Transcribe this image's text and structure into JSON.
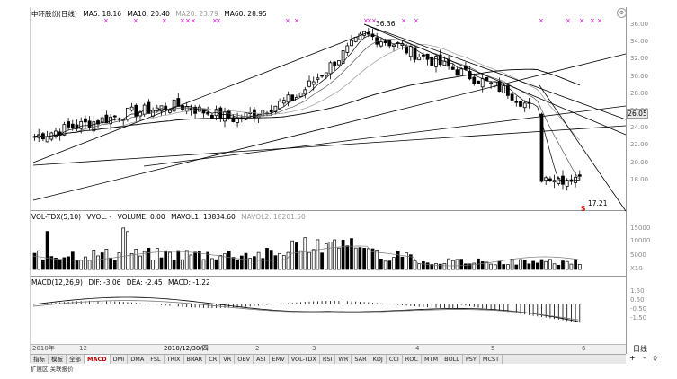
{
  "header": {
    "stock": "中环股份(日线)",
    "ma5": "MA5: 18.16",
    "ma10": "MA10: 20.40",
    "ma20": "MA20: 23.79",
    "ma60": "MA60: 28.95"
  },
  "price_axis": [
    "36.00",
    "34.00",
    "32.00",
    "30.00",
    "28.00",
    "26.00",
    "24.00",
    "22.00",
    "20.00",
    "18.00"
  ],
  "current_price": "26.05",
  "annotations": {
    "high": "36.36",
    "low": "17.21",
    "signal": "S"
  },
  "volume_header": {
    "name": "VOL-TDX(5,10)",
    "vvol": "VVOL: -",
    "volume": "VOLUME: 0.00",
    "mavol1": "MAVOL1: 13834.60",
    "mavol2": "MAVOL2: 18201.50"
  },
  "volume_axis": [
    "15000",
    "10000",
    "5000",
    "X10"
  ],
  "macd_header": {
    "name": "MACD(12,26,9)",
    "dif": "DIF: -3.06",
    "dea": "DEA: -2.45",
    "macd": "MACD: -1.22"
  },
  "macd_axis": [
    "1.50",
    "0.50",
    "-0.50",
    "-1.50"
  ],
  "x_axis": {
    "left": "2010年",
    "date": "2010/12/30/四",
    "ticks": [
      "12",
      "2",
      "3",
      "4",
      "5",
      "6"
    ]
  },
  "period": "日线",
  "zoom": "+ - ◊",
  "tabs": [
    "指标",
    "模板",
    "全部",
    "MACD",
    "DMI",
    "DMA",
    "FSL",
    "TRIX",
    "BRAR",
    "CR",
    "VR",
    "OBV",
    "ASI",
    "EMV",
    "VOL-TDX",
    "RSI",
    "WR",
    "SAR",
    "KDJ",
    "CCI",
    "ROC",
    "MTM",
    "BOLL",
    "PSY",
    "MCST"
  ],
  "active_tab": "MACD",
  "bottom_text": "扩展区  关联报价",
  "colors": {
    "up": "#000000",
    "down": "#000000",
    "signal": "#cc0000",
    "marker": "#cc00cc"
  }
}
